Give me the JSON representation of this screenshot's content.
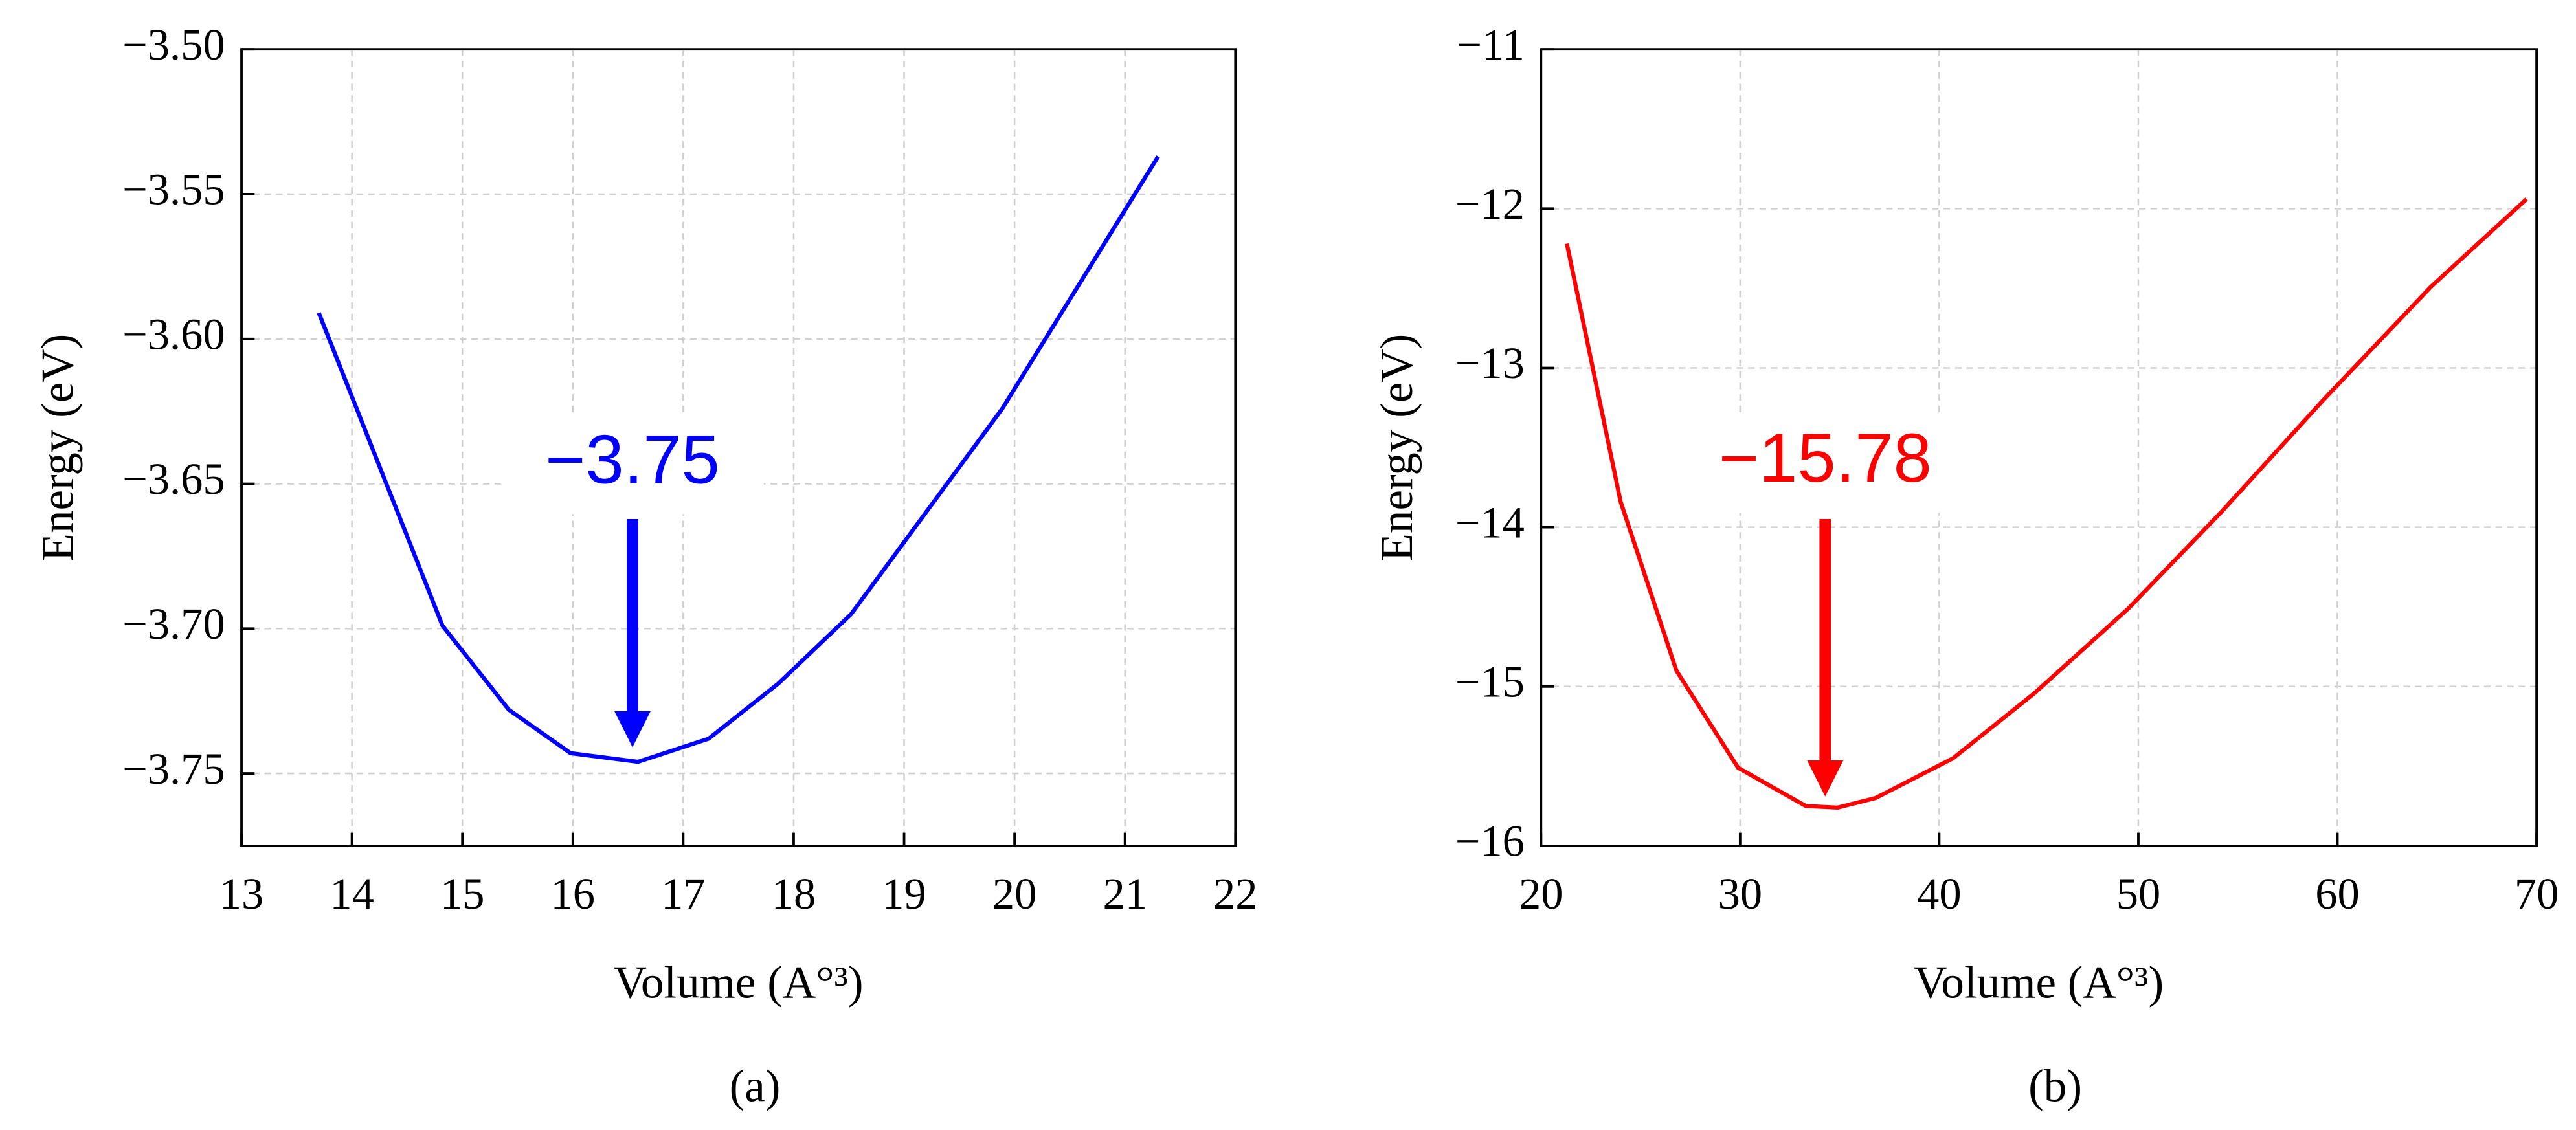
{
  "chart_data": [
    {
      "type": "line",
      "x_label": "Volume (A°³)",
      "y_label": "Energy (eV)",
      "caption": "(a)",
      "annotation": "−3.75",
      "color": "#0000ff",
      "x": [
        13.7,
        14.82,
        15.42,
        15.98,
        16.59,
        17.23,
        17.86,
        18.52,
        19.89,
        21.3
      ],
      "values": [
        -3.591,
        -3.699,
        -3.728,
        -3.743,
        -3.746,
        -3.738,
        -3.719,
        -3.695,
        -3.624,
        -3.537
      ],
      "xlim": [
        13,
        22
      ],
      "xticks": [
        13,
        14,
        15,
        16,
        17,
        18,
        19,
        20,
        21,
        22
      ],
      "ylim": [
        -3.775,
        -3.5
      ],
      "yticks": [
        {
          "value": -3.75,
          "label": "−3.75"
        },
        {
          "value": -3.7,
          "label": "−3.70"
        },
        {
          "value": -3.65,
          "label": "−3.65"
        },
        {
          "value": -3.6,
          "label": "−3.60"
        },
        {
          "value": -3.55,
          "label": "−3.55"
        },
        {
          "value": -3.5,
          "label": "−3.50"
        }
      ],
      "grid": true
    },
    {
      "type": "line",
      "x_label": "Volume (A°³)",
      "y_label": "Energy (eV)",
      "caption": "(b)",
      "annotation": "−15.78",
      "color": "#ff0000",
      "x": [
        21.3,
        24.0,
        26.8,
        29.9,
        33.3,
        34.9,
        36.8,
        40.7,
        44.8,
        49.5,
        54.2,
        59.3,
        64.7,
        69.5
      ],
      "values": [
        -12.22,
        -13.84,
        -14.9,
        -15.51,
        -15.75,
        -15.76,
        -15.7,
        -15.45,
        -15.04,
        -14.51,
        -13.9,
        -13.2,
        -12.49,
        -11.94
      ],
      "xlim": [
        20,
        70
      ],
      "xticks": [
        20,
        30,
        40,
        50,
        60,
        70
      ],
      "ylim": [
        -16,
        -11
      ],
      "yticks": [
        {
          "value": -16,
          "label": "−16"
        },
        {
          "value": -15,
          "label": "−15"
        },
        {
          "value": -14,
          "label": "−14"
        },
        {
          "value": -13,
          "label": "−13"
        },
        {
          "value": -12,
          "label": "−12"
        },
        {
          "value": -11,
          "label": "−11"
        }
      ],
      "grid": true
    }
  ]
}
